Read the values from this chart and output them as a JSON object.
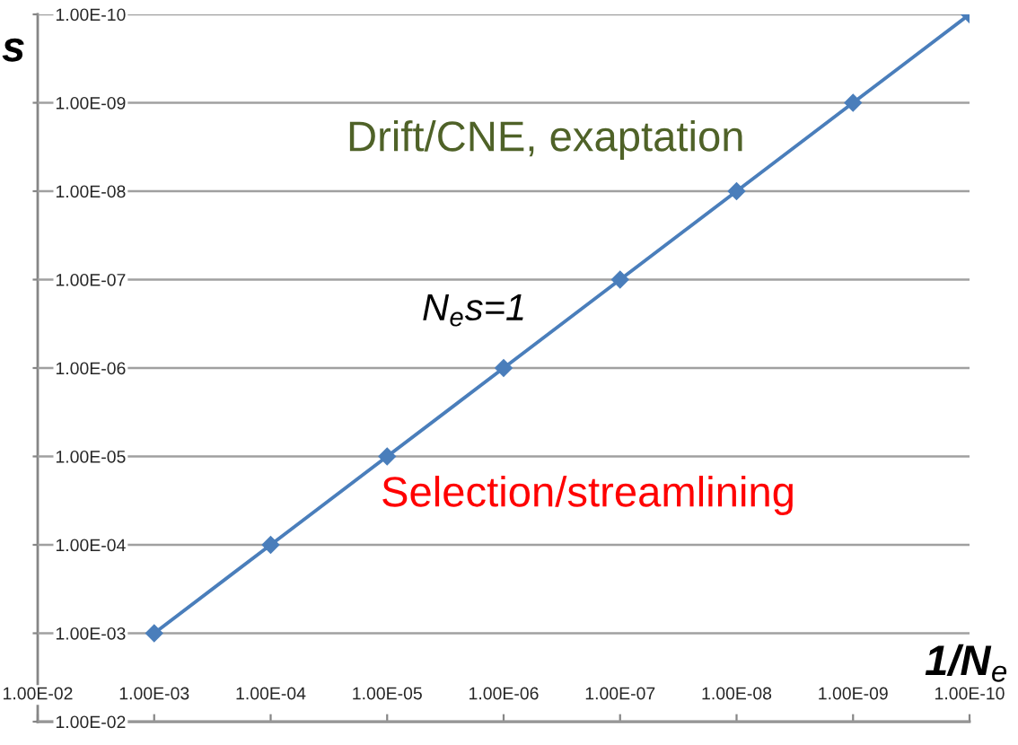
{
  "chart_data": {
    "type": "line",
    "xlabel": "1/N$_{e}$",
    "ylabel": "s",
    "annotations": [
      "Drift/CNE, exaptation",
      "N$_{e}$s=1",
      "Selection/streamlining"
    ],
    "x": [
      0.001,
      0.0001,
      1e-05,
      1e-06,
      1e-07,
      1e-08,
      1e-09,
      1e-10
    ],
    "series": [
      {
        "color": "#4a7ebb",
        "values": [
          0.001,
          0.0001,
          1e-05,
          1e-06,
          1e-07,
          1e-08,
          1e-09,
          1e-10
        ]
      }
    ],
    "log": "xy",
    "xlim": [
      0.01,
      1e-10
    ],
    "ylim": [
      0.01,
      1e-10
    ],
    "xticks": [
      {
        "value": 0.01,
        "label": "1.00E-02"
      },
      {
        "value": 0.001,
        "label": "1.00E-03"
      },
      {
        "value": 0.0001,
        "label": "1.00E-04"
      },
      {
        "value": 1e-05,
        "label": "1.00E-05"
      },
      {
        "value": 1e-06,
        "label": "1.00E-06"
      },
      {
        "value": 1e-07,
        "label": "1.00E-07"
      },
      {
        "value": 1e-08,
        "label": "1.00E-08"
      },
      {
        "value": 1e-09,
        "label": "1.00E-09"
      },
      {
        "value": 1e-10,
        "label": "1.00E-10"
      }
    ],
    "yticks": [
      {
        "value": 0.01,
        "label": "1.00E-02"
      },
      {
        "value": 0.001,
        "label": "1.00E-03"
      },
      {
        "value": 0.0001,
        "label": "1.00E-04"
      },
      {
        "value": 1e-05,
        "label": "1.00E-05"
      },
      {
        "value": 1e-06,
        "label": "1.00E-06"
      },
      {
        "value": 1e-07,
        "label": "1.00E-07"
      },
      {
        "value": 1e-08,
        "label": "1.00E-08"
      },
      {
        "value": 1e-09,
        "label": "1.00E-09"
      },
      {
        "value": 1e-10,
        "label": "1.00E-10"
      }
    ],
    "grid": "y",
    "marker": "diamond",
    "line_style": "solid"
  }
}
